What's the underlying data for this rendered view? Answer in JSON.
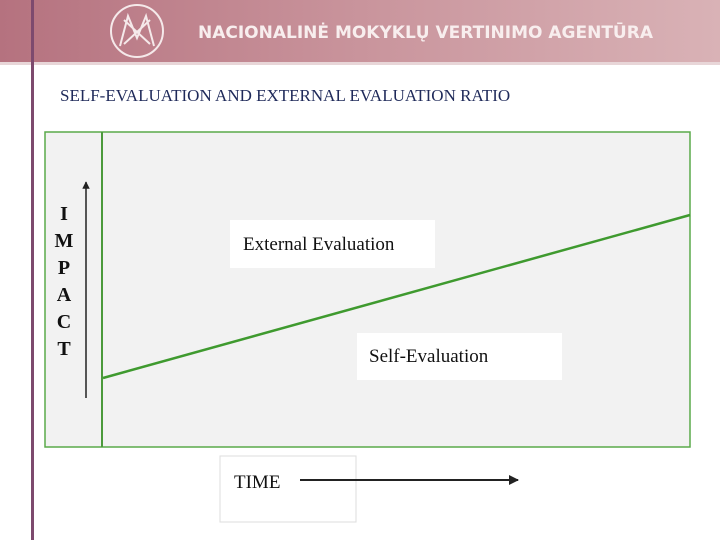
{
  "header": {
    "organization": "NACIONALINĖ MOKYKLŲ VERTINIMO AGENTŪRA"
  },
  "title": "SELF-EVALUATION AND EXTERNAL EVALUATION RATIO",
  "diagram": {
    "y_axis_letters": [
      "I",
      "M",
      "P",
      "A",
      "C",
      "T"
    ],
    "upper_label": "External Evaluation",
    "lower_label": "Self-Evaluation",
    "x_axis_label": "TIME"
  }
}
